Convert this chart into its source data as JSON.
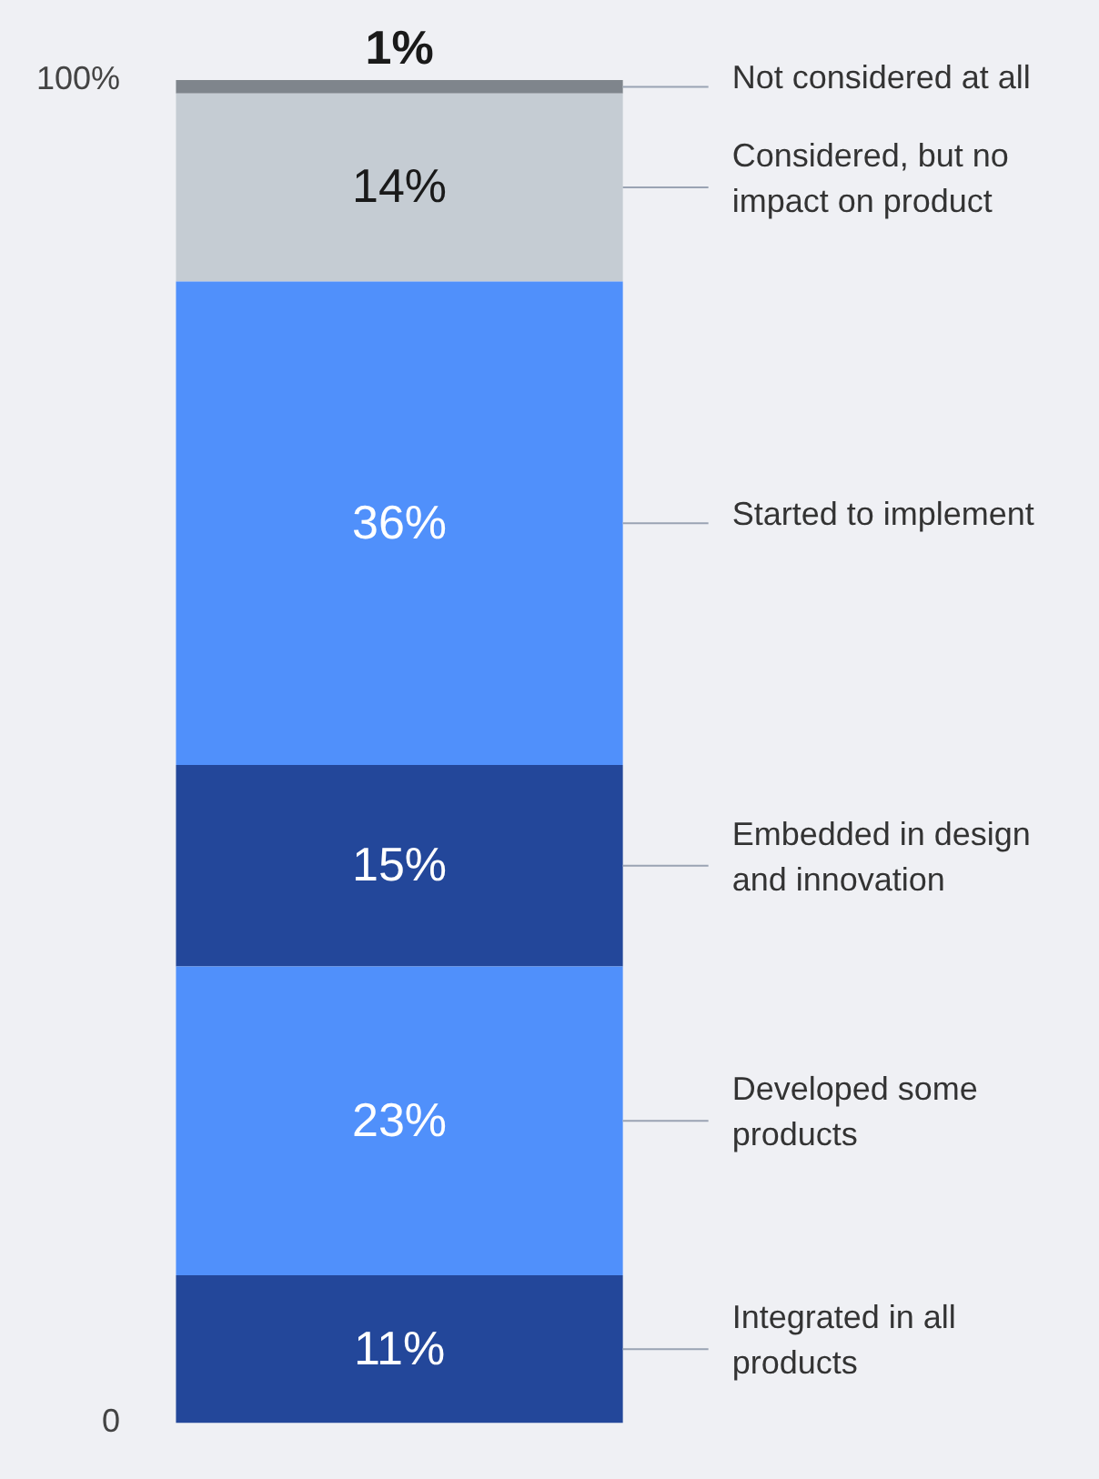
{
  "chart_data": {
    "type": "bar",
    "stacked": true,
    "categories": [
      null
    ],
    "ylim": [
      0,
      100
    ],
    "yticks": [
      {
        "value": 0,
        "label": "0"
      },
      {
        "value": 100,
        "label": "100%"
      }
    ],
    "grid": false,
    "legend": false,
    "data_labels": true,
    "series": [
      {
        "name": "Integrated in all products",
        "color": "#23479a",
        "values": [
          11
        ],
        "value_labels": [
          "11%"
        ]
      },
      {
        "name": "Developed some products",
        "color": "#5090fb",
        "values": [
          23
        ],
        "value_labels": [
          "23%"
        ]
      },
      {
        "name": "Embedded in design and innovation",
        "color": "#23479a",
        "values": [
          15
        ],
        "value_labels": [
          "15%"
        ]
      },
      {
        "name": "Started to implement",
        "color": "#5090fb",
        "values": [
          36
        ],
        "value_labels": [
          "36%"
        ]
      },
      {
        "name": "Considered, but no impact on product",
        "color": "#c5ccd3",
        "values": [
          14
        ],
        "value_labels": [
          "14%"
        ]
      },
      {
        "name": "Not considered at all",
        "color": "#7f858c",
        "values": [
          1
        ],
        "value_labels": [
          "1%"
        ]
      }
    ]
  }
}
